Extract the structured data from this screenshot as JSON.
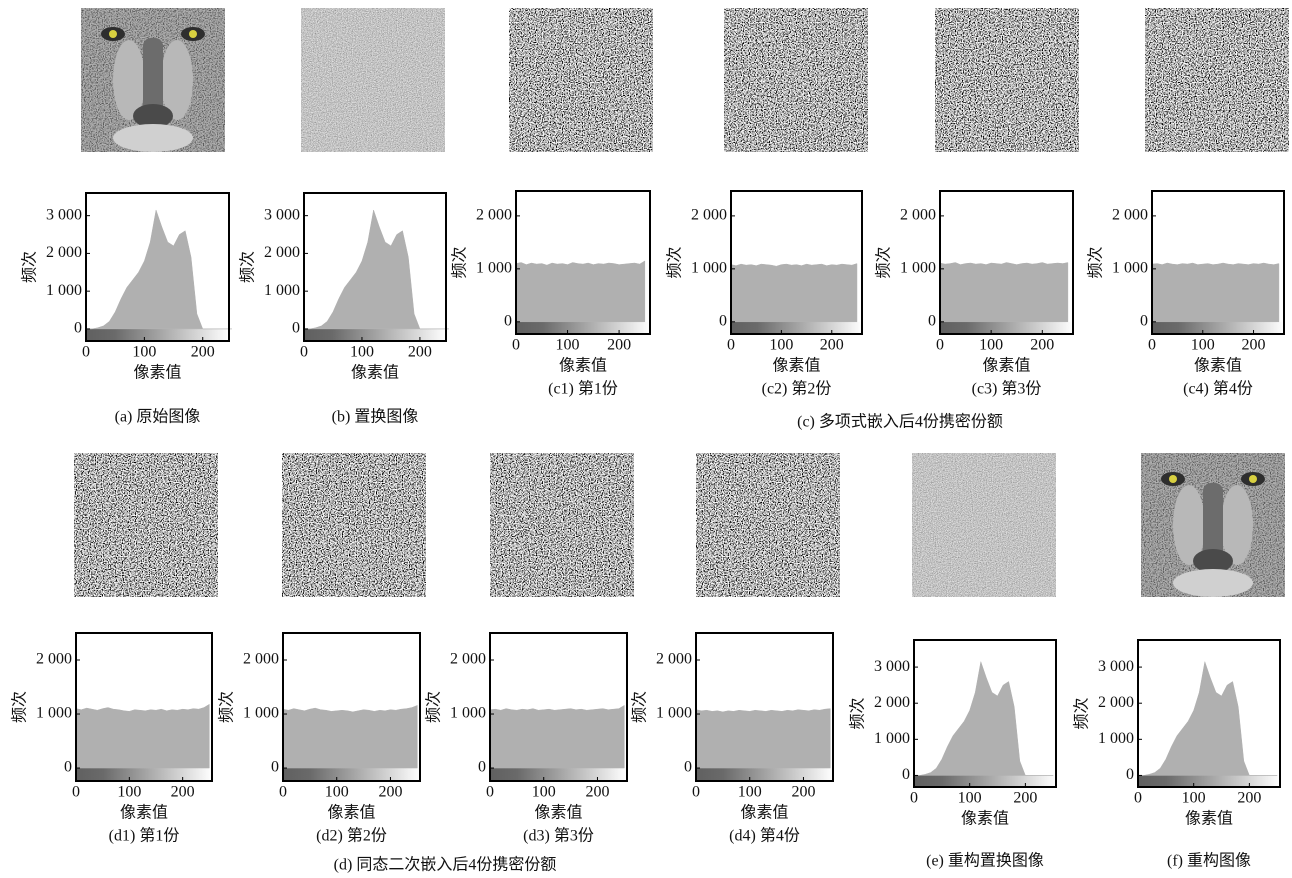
{
  "group_captions": [
    "(c) 多项式嵌入后4份携密份额",
    "(d) 同态二次嵌入后4份携密份额"
  ],
  "chart_data": [
    {
      "type": "area",
      "title": "(a) 原始图像",
      "xlabel": "像素值",
      "ylabel": "频次",
      "color": "#b0b0b0",
      "x": [
        0,
        10,
        20,
        30,
        40,
        50,
        60,
        70,
        80,
        90,
        100,
        110,
        120,
        130,
        140,
        150,
        160,
        170,
        180,
        190,
        200,
        210,
        220,
        230,
        240,
        250
      ],
      "values": [
        0,
        0,
        30,
        80,
        200,
        450,
        800,
        1100,
        1300,
        1500,
        1800,
        2300,
        3150,
        2700,
        2300,
        2200,
        2500,
        2600,
        1900,
        400,
        0,
        0,
        0,
        0,
        0,
        0
      ],
      "xlim": [
        0,
        245
      ],
      "ylim": [
        -320,
        3600
      ],
      "xticks": [
        0,
        100,
        200
      ],
      "yticks": [
        0,
        {
          "value": 1000,
          "label": "1 000"
        },
        {
          "value": 2000,
          "label": "2 000"
        },
        {
          "value": 3000,
          "label": "3 000"
        }
      ]
    },
    {
      "type": "area",
      "title": "(b) 置换图像",
      "xlabel": "像素值",
      "ylabel": "频次",
      "color": "#b0b0b0",
      "x": [
        0,
        10,
        20,
        30,
        40,
        50,
        60,
        70,
        80,
        90,
        100,
        110,
        120,
        130,
        140,
        150,
        160,
        170,
        180,
        190,
        200,
        210,
        220,
        230,
        240,
        250
      ],
      "values": [
        0,
        0,
        30,
        80,
        200,
        450,
        800,
        1100,
        1300,
        1500,
        1800,
        2300,
        3150,
        2700,
        2300,
        2200,
        2500,
        2600,
        1900,
        400,
        0,
        0,
        0,
        0,
        0,
        0
      ],
      "xlim": [
        0,
        245
      ],
      "ylim": [
        -320,
        3600
      ],
      "xticks": [
        0,
        100,
        200
      ],
      "yticks": [
        0,
        {
          "value": 1000,
          "label": "1 000"
        },
        {
          "value": 2000,
          "label": "2 000"
        },
        {
          "value": 3000,
          "label": "3 000"
        }
      ]
    },
    {
      "type": "area",
      "title": "(c1) 第1份",
      "xlabel": "像素值",
      "ylabel": "频次",
      "color": "#b0b0b0",
      "x": [
        0,
        10,
        20,
        30,
        40,
        50,
        60,
        70,
        80,
        90,
        100,
        110,
        120,
        130,
        140,
        150,
        160,
        170,
        180,
        190,
        200,
        210,
        220,
        230,
        240,
        250
      ],
      "values": [
        1100,
        1120,
        1080,
        1110,
        1090,
        1100,
        1070,
        1110,
        1090,
        1100,
        1080,
        1120,
        1100,
        1090,
        1110,
        1080,
        1100,
        1090,
        1110,
        1100,
        1080,
        1090,
        1100,
        1110,
        1090,
        1150
      ],
      "xlim": [
        0,
        260
      ],
      "ylim": [
        -230,
        2470
      ],
      "xticks": [
        0,
        100,
        200
      ],
      "yticks": [
        0,
        {
          "value": 1000,
          "label": "1 000"
        },
        {
          "value": 2000,
          "label": "2 000"
        }
      ]
    },
    {
      "type": "area",
      "title": "(c2) 第2份",
      "xlabel": "像素值",
      "ylabel": "频次",
      "color": "#b0b0b0",
      "x": [
        0,
        10,
        20,
        30,
        40,
        50,
        60,
        70,
        80,
        90,
        100,
        110,
        120,
        130,
        140,
        150,
        160,
        170,
        180,
        190,
        200,
        210,
        220,
        230,
        240,
        250
      ],
      "values": [
        1080,
        1060,
        1090,
        1070,
        1080,
        1060,
        1090,
        1080,
        1070,
        1050,
        1080,
        1090,
        1070,
        1080,
        1060,
        1090,
        1070,
        1080,
        1090,
        1060,
        1080,
        1070,
        1090,
        1080,
        1070,
        1100
      ],
      "xlim": [
        0,
        260
      ],
      "ylim": [
        -230,
        2470
      ],
      "xticks": [
        0,
        100,
        200
      ],
      "yticks": [
        0,
        {
          "value": 1000,
          "label": "1 000"
        },
        {
          "value": 2000,
          "label": "2 000"
        }
      ]
    },
    {
      "type": "area",
      "title": "(c3) 第3份",
      "xlabel": "像素值",
      "ylabel": "频次",
      "color": "#b0b0b0",
      "x": [
        0,
        10,
        20,
        30,
        40,
        50,
        60,
        70,
        80,
        90,
        100,
        110,
        120,
        130,
        140,
        150,
        160,
        170,
        180,
        190,
        200,
        210,
        220,
        230,
        240,
        250
      ],
      "values": [
        1110,
        1090,
        1100,
        1120,
        1080,
        1100,
        1110,
        1090,
        1100,
        1080,
        1110,
        1100,
        1090,
        1120,
        1100,
        1080,
        1100,
        1110,
        1090,
        1100,
        1120,
        1090,
        1100,
        1110,
        1100,
        1120
      ],
      "xlim": [
        0,
        260
      ],
      "ylim": [
        -230,
        2470
      ],
      "xticks": [
        0,
        100,
        200
      ],
      "yticks": [
        0,
        {
          "value": 1000,
          "label": "1 000"
        },
        {
          "value": 2000,
          "label": "2 000"
        }
      ]
    },
    {
      "type": "area",
      "title": "(c4) 第4份",
      "xlabel": "像素值",
      "ylabel": "频次",
      "color": "#b0b0b0",
      "x": [
        0,
        10,
        20,
        30,
        40,
        50,
        60,
        70,
        80,
        90,
        100,
        110,
        120,
        130,
        140,
        150,
        160,
        170,
        180,
        190,
        200,
        210,
        220,
        230,
        240,
        250
      ],
      "values": [
        1090,
        1100,
        1080,
        1110,
        1090,
        1080,
        1100,
        1090,
        1110,
        1080,
        1090,
        1100,
        1080,
        1090,
        1110,
        1090,
        1080,
        1100,
        1090,
        1080,
        1100,
        1090,
        1110,
        1090,
        1080,
        1100
      ],
      "xlim": [
        0,
        260
      ],
      "ylim": [
        -230,
        2470
      ],
      "xticks": [
        0,
        100,
        200
      ],
      "yticks": [
        0,
        {
          "value": 1000,
          "label": "1 000"
        },
        {
          "value": 2000,
          "label": "2 000"
        }
      ]
    },
    {
      "type": "area",
      "title": "(d1) 第1份",
      "xlabel": "像素值",
      "ylabel": "频次",
      "color": "#b0b0b0",
      "x": [
        0,
        10,
        20,
        30,
        40,
        50,
        60,
        70,
        80,
        90,
        100,
        110,
        120,
        130,
        140,
        150,
        160,
        170,
        180,
        190,
        200,
        210,
        220,
        230,
        240,
        250
      ],
      "values": [
        1100,
        1080,
        1110,
        1090,
        1070,
        1100,
        1120,
        1090,
        1080,
        1060,
        1050,
        1080,
        1070,
        1060,
        1080,
        1070,
        1090,
        1060,
        1080,
        1070,
        1090,
        1080,
        1100,
        1090,
        1120,
        1180
      ],
      "xlim": [
        0,
        255
      ],
      "ylim": [
        -240,
        2500
      ],
      "xticks": [
        0,
        100,
        200
      ],
      "yticks": [
        0,
        {
          "value": 1000,
          "label": "1 000"
        },
        {
          "value": 2000,
          "label": "2 000"
        }
      ]
    },
    {
      "type": "area",
      "title": "(d2) 第2份",
      "xlabel": "像素值",
      "ylabel": "频次",
      "color": "#b0b0b0",
      "x": [
        0,
        10,
        20,
        30,
        40,
        50,
        60,
        70,
        80,
        90,
        100,
        110,
        120,
        130,
        140,
        150,
        160,
        170,
        180,
        190,
        200,
        210,
        220,
        230,
        240,
        250
      ],
      "values": [
        1090,
        1070,
        1100,
        1080,
        1060,
        1090,
        1110,
        1080,
        1070,
        1050,
        1060,
        1070,
        1060,
        1040,
        1060,
        1080,
        1070,
        1050,
        1070,
        1060,
        1080,
        1070,
        1090,
        1100,
        1120,
        1160
      ],
      "xlim": [
        0,
        255
      ],
      "ylim": [
        -240,
        2500
      ],
      "xticks": [
        0,
        100,
        200
      ],
      "yticks": [
        0,
        {
          "value": 1000,
          "label": "1 000"
        },
        {
          "value": 2000,
          "label": "2 000"
        }
      ]
    },
    {
      "type": "area",
      "title": "(d3) 第3份",
      "xlabel": "像素值",
      "ylabel": "频次",
      "color": "#b0b0b0",
      "x": [
        0,
        10,
        20,
        30,
        40,
        50,
        60,
        70,
        80,
        90,
        100,
        110,
        120,
        130,
        140,
        150,
        160,
        170,
        180,
        190,
        200,
        210,
        220,
        230,
        240,
        250
      ],
      "values": [
        1080,
        1090,
        1070,
        1100,
        1080,
        1070,
        1090,
        1080,
        1100,
        1070,
        1080,
        1090,
        1070,
        1080,
        1090,
        1100,
        1080,
        1090,
        1070,
        1080,
        1090,
        1100,
        1080,
        1090,
        1100,
        1160
      ],
      "xlim": [
        0,
        255
      ],
      "ylim": [
        -240,
        2500
      ],
      "xticks": [
        0,
        100,
        200
      ],
      "yticks": [
        0,
        {
          "value": 1000,
          "label": "1 000"
        },
        {
          "value": 2000,
          "label": "2 000"
        }
      ]
    },
    {
      "type": "area",
      "title": "(d4) 第4份",
      "xlabel": "像素值",
      "ylabel": "频次",
      "color": "#b0b0b0",
      "x": [
        0,
        10,
        20,
        30,
        40,
        50,
        60,
        70,
        80,
        90,
        100,
        110,
        120,
        130,
        140,
        150,
        160,
        170,
        180,
        190,
        200,
        210,
        220,
        230,
        240,
        250
      ],
      "values": [
        1080,
        1060,
        1070,
        1050,
        1060,
        1040,
        1060,
        1050,
        1070,
        1060,
        1050,
        1070,
        1060,
        1050,
        1070,
        1060,
        1050,
        1070,
        1060,
        1080,
        1070,
        1060,
        1080,
        1070,
        1090,
        1100
      ],
      "xlim": [
        0,
        255
      ],
      "ylim": [
        -240,
        2500
      ],
      "xticks": [
        0,
        100,
        200
      ],
      "yticks": [
        0,
        {
          "value": 1000,
          "label": "1 000"
        },
        {
          "value": 2000,
          "label": "2 000"
        }
      ]
    },
    {
      "type": "area",
      "title": "(e) 重构置换图像",
      "xlabel": "像素值",
      "ylabel": "频次",
      "color": "#b0b0b0",
      "x": [
        0,
        10,
        20,
        30,
        40,
        50,
        60,
        70,
        80,
        90,
        100,
        110,
        120,
        130,
        140,
        150,
        160,
        170,
        180,
        190,
        200,
        210,
        220,
        230,
        240,
        250
      ],
      "values": [
        0,
        0,
        30,
        80,
        200,
        450,
        800,
        1100,
        1300,
        1500,
        1800,
        2300,
        3150,
        2700,
        2300,
        2200,
        2500,
        2600,
        1900,
        400,
        0,
        0,
        0,
        0,
        0,
        0
      ],
      "xlim": [
        0,
        255
      ],
      "ylim": [
        -320,
        3750
      ],
      "xticks": [
        0,
        100,
        200
      ],
      "yticks": [
        0,
        {
          "value": 1000,
          "label": "1 000"
        },
        {
          "value": 2000,
          "label": "2 000"
        },
        {
          "value": 3000,
          "label": "3 000"
        }
      ]
    },
    {
      "type": "area",
      "title": "(f) 重构图像",
      "xlabel": "像素值",
      "ylabel": "频次",
      "color": "#b0b0b0",
      "x": [
        0,
        10,
        20,
        30,
        40,
        50,
        60,
        70,
        80,
        90,
        100,
        110,
        120,
        130,
        140,
        150,
        160,
        170,
        180,
        190,
        200,
        210,
        220,
        230,
        240,
        250
      ],
      "values": [
        0,
        0,
        30,
        80,
        200,
        450,
        800,
        1100,
        1300,
        1500,
        1800,
        2300,
        3150,
        2700,
        2300,
        2200,
        2500,
        2600,
        1900,
        400,
        0,
        0,
        0,
        0,
        0,
        0
      ],
      "xlim": [
        0,
        255
      ],
      "ylim": [
        -320,
        3750
      ],
      "xticks": [
        0,
        100,
        200
      ],
      "yticks": [
        0,
        {
          "value": 1000,
          "label": "1 000"
        },
        {
          "value": 2000,
          "label": "2 000"
        },
        {
          "value": 3000,
          "label": "3 000"
        }
      ]
    }
  ]
}
